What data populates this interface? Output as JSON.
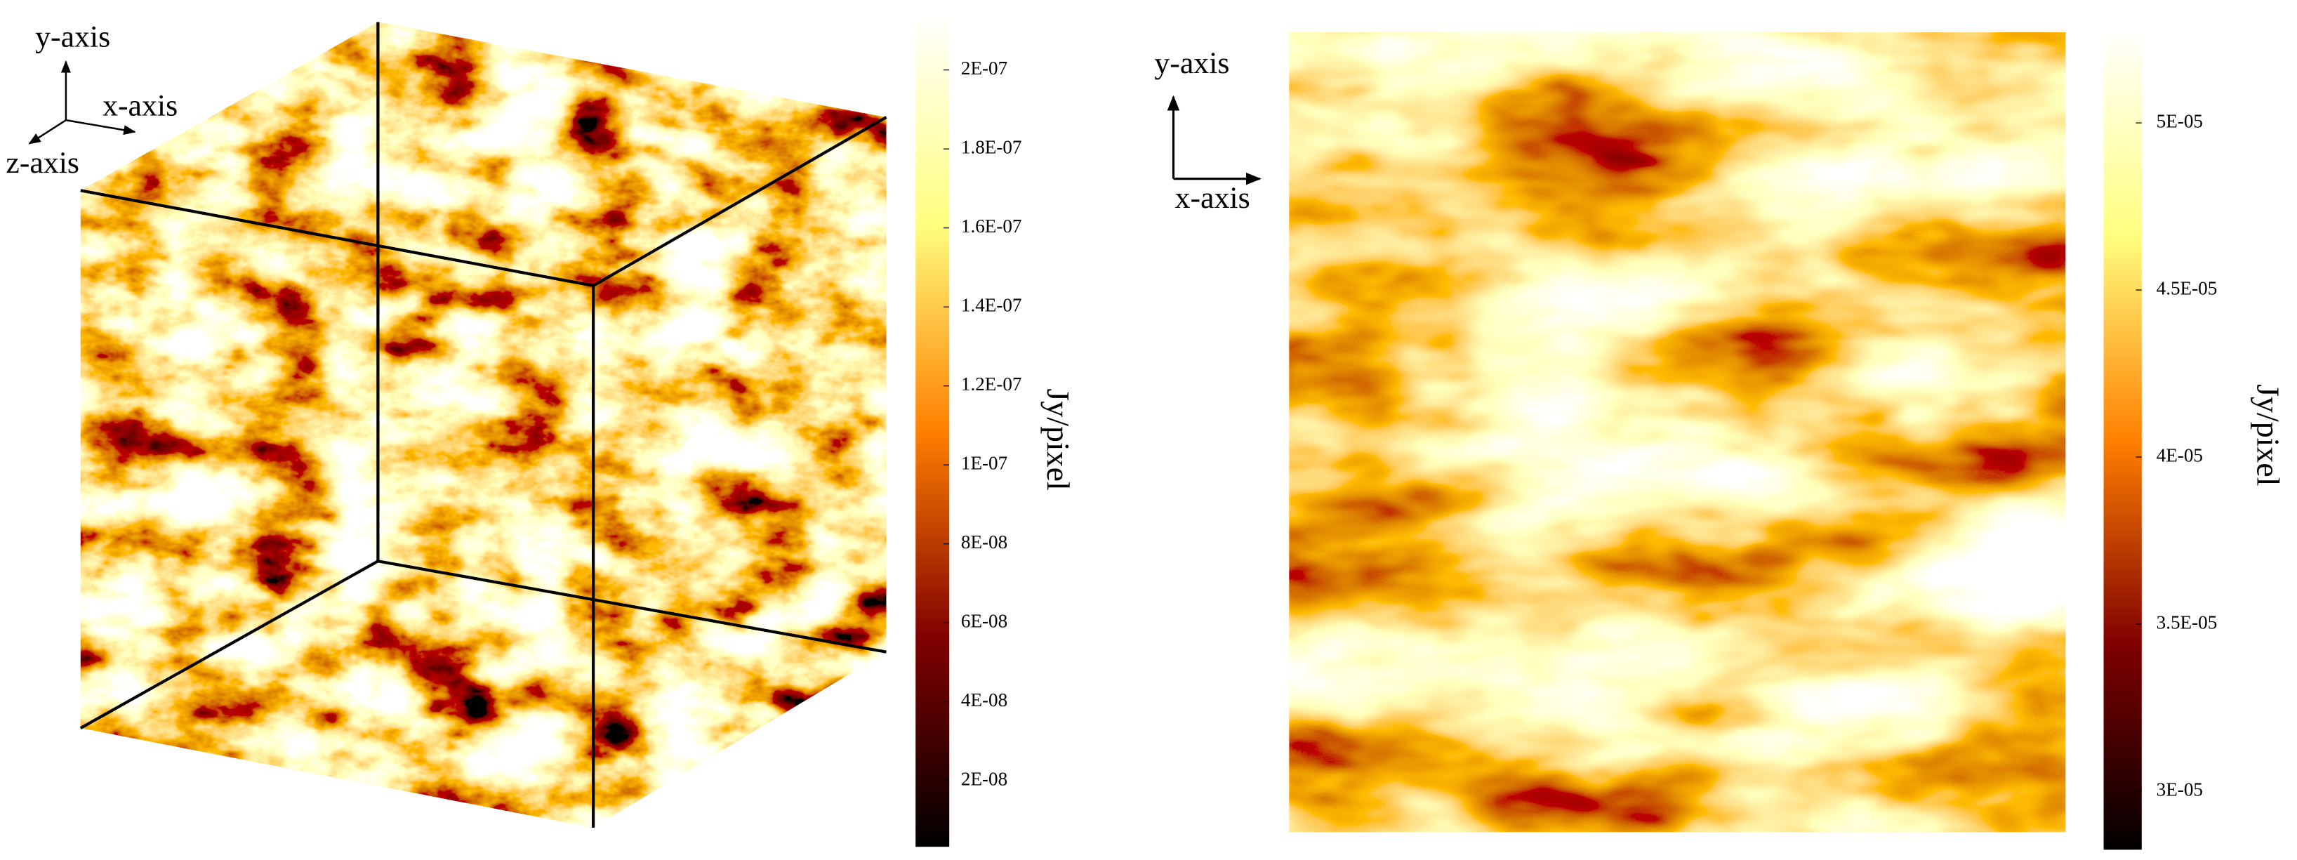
{
  "chart_data": [
    {
      "type": "volume-render",
      "colormap": "afmhot",
      "axis_labels": [
        "y-axis",
        "x-axis",
        "z-axis"
      ],
      "colorbar": {
        "label": "Jy/pixel",
        "lim": [
          3.3e-09,
          2.14e-07
        ],
        "ticks": [
          {
            "value": 2e-08,
            "label": "2E-08"
          },
          {
            "value": 4e-08,
            "label": "4E-08"
          },
          {
            "value": 6e-08,
            "label": "6E-08"
          },
          {
            "value": 8e-08,
            "label": "8E-08"
          },
          {
            "value": 1e-07,
            "label": "1E-07"
          },
          {
            "value": 1.2e-07,
            "label": "1.2E-07"
          },
          {
            "value": 1.4e-07,
            "label": "1.4E-07"
          },
          {
            "value": 1.6e-07,
            "label": "1.6E-07"
          },
          {
            "value": 1.8e-07,
            "label": "1.8E-07"
          },
          {
            "value": 2e-07,
            "label": "2E-07"
          }
        ]
      }
    },
    {
      "type": "image",
      "colormap": "afmhot",
      "axis_labels": [
        "y-axis",
        "x-axis"
      ],
      "colorbar": {
        "label": "Jy/pixel",
        "lim": [
          2.825e-05,
          5.28e-05
        ],
        "ticks": [
          {
            "value": 3e-05,
            "label": "3E-05"
          },
          {
            "value": 3.5e-05,
            "label": "3.5E-05"
          },
          {
            "value": 4e-05,
            "label": "4E-05"
          },
          {
            "value": 4.5e-05,
            "label": "4.5E-05"
          },
          {
            "value": 5e-05,
            "label": "5E-05"
          }
        ]
      }
    }
  ]
}
